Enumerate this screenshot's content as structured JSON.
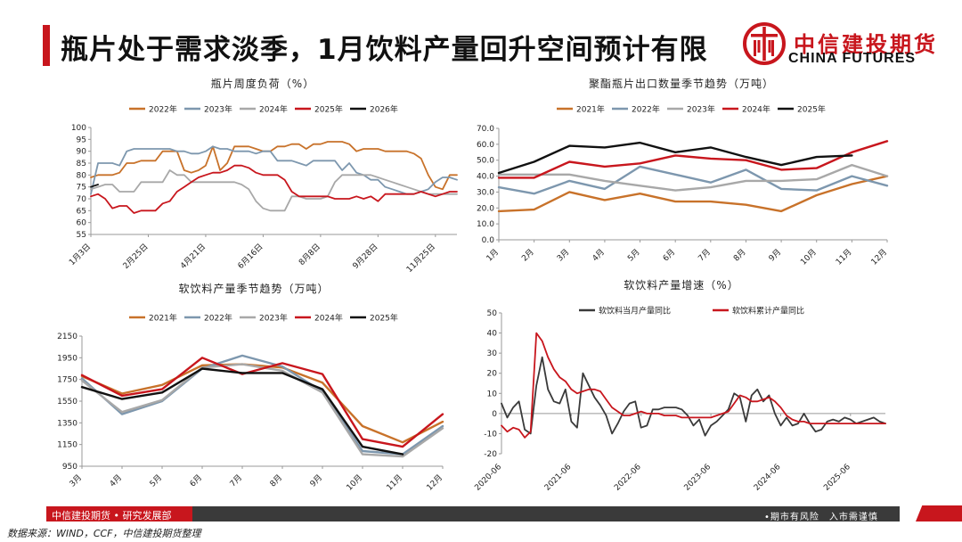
{
  "page": {
    "title": "瓶片处于需求淡季，1月饮料产量回升空间预计有限",
    "logo_cn": "中信建投期货",
    "logo_en": "CHINA FUTURES",
    "footer_org": "中信建投期货 • 研究发展部",
    "footer_risk": "•期市有风险　入市需谨慎",
    "source": "数据来源：WIND，CCF，中信建投期货整理",
    "colors": {
      "brand_red": "#c8161d",
      "footer_dark": "#3a3a3a"
    }
  },
  "chart_data": [
    {
      "id": "c1",
      "type": "line",
      "title": "瓶片周度负荷（%）",
      "ylim": [
        55,
        100
      ],
      "yticks": [
        55,
        60,
        65,
        70,
        75,
        80,
        85,
        90,
        95,
        100
      ],
      "x_count": 52,
      "xtick_labels": [
        "1月3日",
        "2月25日",
        "4月21日",
        "6月16日",
        "8月8日",
        "9月28日",
        "11月25日"
      ],
      "xtick_index": [
        0,
        8,
        16,
        24,
        32,
        40,
        48
      ],
      "series": [
        {
          "name": "2022年",
          "color": "#c8722a",
          "values": [
            79,
            80,
            80,
            80,
            81,
            85,
            85,
            86,
            86,
            86,
            90,
            90,
            90,
            82,
            81,
            82,
            84,
            92,
            82,
            85,
            92,
            92,
            92,
            91,
            90,
            90,
            92,
            92,
            93,
            93,
            91,
            93,
            93,
            94,
            94,
            94,
            93,
            90,
            91,
            91,
            91,
            90,
            90,
            90,
            90,
            89,
            87,
            80,
            75,
            74,
            80,
            80
          ]
        },
        {
          "name": "2023年",
          "color": "#7d97ae",
          "values": [
            72,
            85,
            85,
            85,
            84,
            90,
            91,
            91,
            91,
            91,
            91,
            91,
            90,
            90,
            89,
            89,
            90,
            92,
            91,
            91,
            90,
            90,
            90,
            89,
            90,
            90,
            86,
            86,
            86,
            85,
            84,
            86,
            86,
            86,
            86,
            82,
            85,
            81,
            80,
            78,
            78,
            75,
            74,
            73,
            72,
            72,
            73,
            74,
            77,
            79,
            79,
            78
          ]
        },
        {
          "name": "2024年",
          "color": "#a8a8a8",
          "values": [
            74,
            75,
            76,
            76,
            73,
            73,
            73,
            77,
            77,
            77,
            77,
            82,
            80,
            80,
            77,
            77,
            77,
            77,
            77,
            77,
            77,
            76,
            74,
            69,
            66,
            65,
            65,
            65,
            71,
            71,
            70,
            70,
            70,
            71,
            77,
            80,
            80,
            80,
            80,
            80,
            79,
            78,
            77,
            76,
            75,
            74,
            73,
            72,
            72,
            72,
            72,
            72
          ]
        },
        {
          "name": "2025年",
          "color": "#c8161d",
          "values": [
            71,
            72,
            70,
            66,
            67,
            67,
            64,
            65,
            65,
            65,
            68,
            69,
            73,
            75,
            77,
            79,
            80,
            81,
            81,
            82,
            84,
            84,
            83,
            81,
            80,
            80,
            80,
            78,
            73,
            71,
            71,
            71,
            71,
            71,
            70,
            70,
            70,
            71,
            70,
            71,
            69,
            72,
            72,
            72,
            72,
            72,
            73,
            72,
            71,
            72,
            73,
            73
          ]
        },
        {
          "name": "2026年",
          "color": "#111111",
          "values": [
            75,
            76,
            null,
            null,
            null,
            null,
            null,
            null,
            null,
            null,
            null,
            null,
            null,
            null,
            null,
            null,
            null,
            null,
            null,
            null,
            null,
            null,
            null,
            null,
            null,
            null,
            null,
            null,
            null,
            null,
            null,
            null,
            null,
            null,
            null,
            null,
            null,
            null,
            null,
            null,
            null,
            null,
            null,
            null,
            null,
            null,
            null,
            null,
            null,
            null,
            null,
            null
          ]
        }
      ]
    },
    {
      "id": "c2",
      "type": "line",
      "title": "聚酯瓶片出口数量季节趋势（万吨）",
      "ylim": [
        0,
        70
      ],
      "yticks": [
        0,
        10,
        20,
        30,
        40,
        50,
        60,
        70
      ],
      "ytick_format": 1,
      "x_count": 12,
      "xtick_labels": [
        "1月",
        "2月",
        "3月",
        "4月",
        "5月",
        "6月",
        "7月",
        "8月",
        "9月",
        "10月",
        "11月",
        "12月"
      ],
      "xtick_index": [
        0,
        1,
        2,
        3,
        4,
        5,
        6,
        7,
        8,
        9,
        10,
        11
      ],
      "series": [
        {
          "name": "2021年",
          "color": "#c8722a",
          "values": [
            18,
            19,
            30,
            25,
            29,
            24,
            24,
            22,
            18,
            28,
            35,
            40
          ]
        },
        {
          "name": "2022年",
          "color": "#7d97ae",
          "values": [
            33,
            29,
            37,
            32,
            46,
            41,
            36,
            44,
            32,
            31,
            40,
            34
          ]
        },
        {
          "name": "2023年",
          "color": "#a8a8a8",
          "values": [
            41,
            41,
            41,
            37,
            34,
            31,
            33,
            37,
            37,
            38,
            47,
            40
          ]
        },
        {
          "name": "2024年",
          "color": "#c8161d",
          "values": [
            39,
            39,
            49,
            46,
            48,
            53,
            51,
            50,
            44,
            45,
            55,
            62
          ]
        },
        {
          "name": "2025年",
          "color": "#111111",
          "values": [
            42,
            49,
            59,
            58,
            61,
            55,
            58,
            52,
            47,
            52,
            53,
            null
          ]
        }
      ]
    },
    {
      "id": "c3",
      "type": "line",
      "title": "软饮料产量季节趋势（万吨）",
      "ylim": [
        950,
        2150
      ],
      "yticks": [
        950,
        1150,
        1350,
        1550,
        1750,
        1950,
        2150
      ],
      "x_count": 10,
      "xtick_labels": [
        "3月",
        "4月",
        "5月",
        "6月",
        "7月",
        "8月",
        "9月",
        "10月",
        "11月",
        "12月"
      ],
      "xtick_index": [
        0,
        1,
        2,
        3,
        4,
        5,
        6,
        7,
        8,
        9
      ],
      "series": [
        {
          "name": "2021年",
          "color": "#c8722a",
          "values": [
            1780,
            1620,
            1700,
            1880,
            1890,
            1860,
            1720,
            1320,
            1170,
            1360
          ]
        },
        {
          "name": "2022年",
          "color": "#7d97ae",
          "values": [
            1760,
            1430,
            1550,
            1850,
            1970,
            1870,
            1640,
            1090,
            1060,
            1320
          ]
        },
        {
          "name": "2023年",
          "color": "#a8a8a8",
          "values": [
            1740,
            1450,
            1560,
            1860,
            1890,
            1830,
            1630,
            1060,
            1040,
            1300
          ]
        },
        {
          "name": "2024年",
          "color": "#c8161d",
          "values": [
            1790,
            1600,
            1660,
            1950,
            1800,
            1900,
            1800,
            1200,
            1130,
            1430
          ]
        },
        {
          "name": "2025年",
          "color": "#111111",
          "values": [
            1680,
            1570,
            1630,
            1850,
            1810,
            1810,
            1660,
            1130,
            1060,
            null
          ]
        }
      ]
    },
    {
      "id": "c4",
      "type": "line",
      "title": "软饮料产量增速（%）",
      "ylim": [
        -20,
        50
      ],
      "yticks": [
        -20,
        -10,
        0,
        10,
        20,
        30,
        40,
        50
      ],
      "x_count": 67,
      "xtick_labels": [
        "2020-06",
        "2021-06",
        "2022-06",
        "2023-06",
        "2024-06",
        "2025-06"
      ],
      "xtick_index": [
        0,
        12,
        24,
        36,
        48,
        60
      ],
      "series": [
        {
          "name": "软饮料当月产量同比",
          "color": "#3a3a3a",
          "values": [
            5,
            -2,
            3,
            6,
            -8,
            -10,
            14,
            28,
            12,
            6,
            5,
            12,
            -4,
            -7,
            20,
            14,
            8,
            4,
            -1,
            -10,
            -5,
            1,
            5,
            6,
            -7,
            -6,
            2,
            2,
            3,
            3,
            3,
            2,
            -1,
            -6,
            -3,
            -11,
            -6,
            -4,
            -1,
            2,
            10,
            8,
            -4,
            9,
            12,
            6,
            9,
            0,
            -6,
            -2,
            -6,
            -5,
            0,
            -5,
            -9,
            -8,
            -4,
            -3,
            -4,
            -2,
            -3,
            -5,
            -4,
            -3,
            -2,
            -4,
            -5
          ]
        },
        {
          "name": "软饮料累计产量同比",
          "color": "#c8161d",
          "values": [
            -6,
            -9,
            -7,
            -8,
            -12,
            -9,
            40,
            36,
            28,
            22,
            18,
            16,
            12,
            10,
            11,
            12,
            12,
            11,
            7,
            3,
            1,
            -1,
            -1,
            0,
            1,
            0,
            0,
            0,
            -1,
            -1,
            -1,
            -2,
            -2,
            -2,
            -2,
            -2,
            -2,
            -1,
            0,
            1,
            5,
            9,
            8,
            6,
            6,
            7,
            8,
            6,
            3,
            -1,
            -3,
            -4,
            -4,
            -5,
            -5,
            -5,
            -5,
            -5,
            -5,
            -5,
            -5,
            -5,
            -5,
            -5,
            -5,
            -5,
            -5
          ]
        }
      ]
    }
  ]
}
